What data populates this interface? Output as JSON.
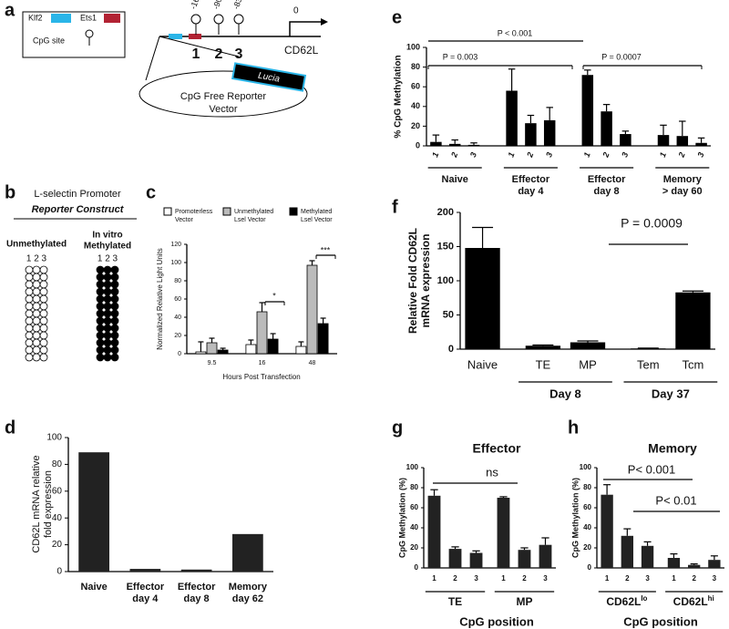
{
  "panel_labels": [
    "a",
    "b",
    "c",
    "d",
    "e",
    "f",
    "g",
    "h"
  ],
  "diagram_a": {
    "legend": {
      "klf2": "Klf2",
      "ets1": "Ets1",
      "cpg": "CpG site"
    },
    "positions": [
      "-165",
      "-90",
      "-83",
      "0"
    ],
    "gene": "CD62L",
    "sites": [
      "1",
      "2",
      "3"
    ],
    "reporter": "Lucia",
    "vector": [
      "CpG Free Reporter",
      "Vector"
    ]
  },
  "diagram_b": {
    "title": "L-selectin Promoter",
    "subtitle": "Reporter Construct",
    "columns": [
      {
        "label": [
          "Unmethylated"
        ],
        "sites": "1 2 3"
      },
      {
        "label": [
          "In vitro",
          "Methylated"
        ],
        "sites": "1 2 3"
      }
    ]
  },
  "chart_data": [
    {
      "type": "grouped_bar",
      "categories": [
        "9.5",
        "16",
        "48"
      ],
      "series": [
        {
          "name": [
            "Promoterless",
            "Vector"
          ],
          "color": "#ffffff",
          "values": [
            2,
            10,
            8
          ],
          "errors": [
            11,
            5,
            5
          ]
        },
        {
          "name": [
            "Unmethylated",
            "Lsel Vector"
          ],
          "color": "#bbbbbb",
          "values": [
            12,
            46,
            97
          ],
          "errors": [
            5,
            10,
            5
          ]
        },
        {
          "name": [
            "Methylated",
            "Lsel Vector"
          ],
          "color": "#000000",
          "values": [
            4,
            16,
            33
          ],
          "errors": [
            2,
            6,
            6
          ]
        }
      ],
      "ylabel": [
        "Normalized Relative Light Units"
      ],
      "xlabel": "Hours Post Transfection",
      "ylim": [
        0,
        120
      ],
      "yticks": [
        0,
        20,
        40,
        60,
        80,
        100,
        120
      ],
      "annotations": [
        "*",
        "***"
      ]
    },
    {
      "type": "bar",
      "categories": [
        [
          "Naive"
        ],
        [
          "Effector",
          "day 4"
        ],
        [
          "Effector",
          "day 8"
        ],
        [
          "Memory",
          "day 62"
        ]
      ],
      "values": [
        89,
        2,
        1.5,
        28
      ],
      "color": "#222222",
      "ylabel": [
        "CD62L mRNA relative",
        "fold expression"
      ],
      "ylim": [
        0,
        100
      ],
      "yticks": [
        0,
        20,
        40,
        60,
        80,
        100
      ]
    },
    {
      "type": "group_bar",
      "color": "#000000",
      "groups": [
        {
          "name": [
            "Naive"
          ],
          "categories": [
            "1",
            "2",
            "3"
          ],
          "values": [
            4,
            2,
            1
          ],
          "errors": [
            7,
            4,
            2
          ]
        },
        {
          "name": [
            "Effector",
            "day 4"
          ],
          "categories": [
            "1",
            "2",
            "3"
          ],
          "values": [
            56,
            23,
            26
          ],
          "errors": [
            22,
            8,
            13
          ]
        },
        {
          "name": [
            "Effector",
            "day 8"
          ],
          "categories": [
            "1",
            "2",
            "3"
          ],
          "values": [
            72,
            35,
            12
          ],
          "errors": [
            5,
            7,
            3
          ]
        },
        {
          "name": [
            "Memory",
            "> day 60"
          ],
          "categories": [
            "1",
            "2",
            "3"
          ],
          "values": [
            11,
            10,
            3
          ],
          "errors": [
            10,
            15,
            5
          ]
        }
      ],
      "ylabel": [
        "% CpG Methylation"
      ],
      "ylim": [
        0,
        100
      ],
      "yticks": [
        0,
        20,
        40,
        60,
        80,
        100
      ],
      "annotations": [
        "P = 0.003",
        "P < 0.001",
        "P = 0.0007"
      ]
    },
    {
      "type": "group_bar",
      "color": "#000000",
      "groups": [
        {
          "name": null,
          "categories": [
            "Naive"
          ],
          "values": [
            148
          ],
          "errors": [
            30
          ]
        },
        {
          "name": [
            "Day 8"
          ],
          "categories": [
            "TE",
            "MP"
          ],
          "values": [
            5,
            10
          ],
          "errors": [
            1,
            2
          ]
        },
        {
          "name": [
            "Day 37"
          ],
          "categories": [
            "Tem",
            "Tcm"
          ],
          "values": [
            1,
            83
          ],
          "errors": [
            0.5,
            2
          ]
        }
      ],
      "ylabel": [
        "Relative Fold CD62L",
        "mRNA expression"
      ],
      "ylim": [
        0,
        200
      ],
      "yticks": [
        0,
        50,
        100,
        150,
        200
      ],
      "annotations": [
        "P = 0.0009"
      ]
    },
    {
      "type": "group_bar",
      "title": "Effector",
      "color": "#222222",
      "groups": [
        {
          "name": [
            "TE"
          ],
          "categories": [
            "1",
            "2",
            "3"
          ],
          "values": [
            72,
            19,
            15
          ],
          "errors": [
            6,
            2,
            2
          ]
        },
        {
          "name": [
            "MP"
          ],
          "categories": [
            "1",
            "2",
            "3"
          ],
          "values": [
            70,
            18,
            23
          ],
          "errors": [
            1,
            2,
            7
          ]
        }
      ],
      "xlabel": "CpG position",
      "ylabel": [
        "CpG Methylation (%)"
      ],
      "ylim": [
        0,
        100
      ],
      "yticks": [
        0,
        20,
        40,
        60,
        80,
        100
      ],
      "annotations": [
        "ns"
      ]
    },
    {
      "type": "group_bar",
      "title": "Memory",
      "color": "#222222",
      "groups": [
        {
          "name": [
            "CD62L"
          ],
          "superscript": "lo",
          "categories": [
            "1",
            "2",
            "3"
          ],
          "values": [
            73,
            32,
            22
          ],
          "errors": [
            10,
            7,
            4
          ]
        },
        {
          "name": [
            "CD62L"
          ],
          "superscript": "hi",
          "categories": [
            "1",
            "2",
            "3"
          ],
          "values": [
            10,
            3,
            8
          ],
          "errors": [
            4,
            1,
            4
          ]
        }
      ],
      "xlabel": "CpG position",
      "ylabel": [
        "CpG Methylation (%)"
      ],
      "ylim": [
        0,
        100
      ],
      "yticks": [
        0,
        20,
        40,
        60,
        80,
        100
      ],
      "annotations": [
        "P< 0.001",
        "P< 0.01"
      ]
    }
  ]
}
